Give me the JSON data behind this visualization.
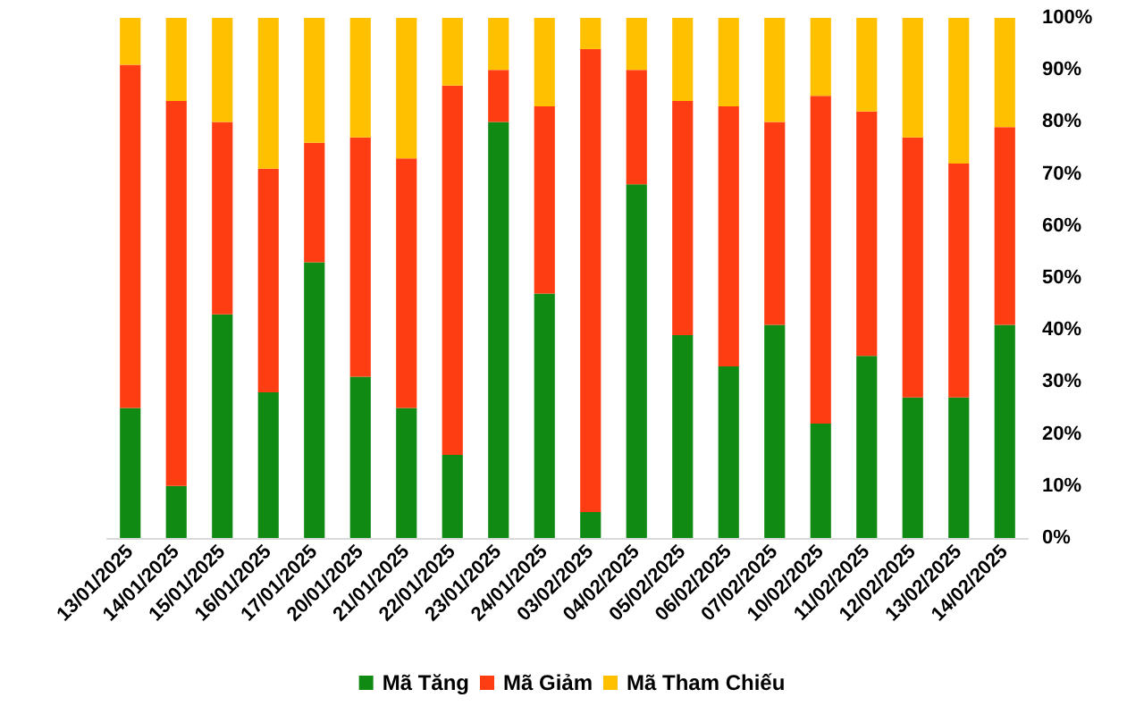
{
  "chart_data": {
    "type": "bar",
    "stacked": true,
    "categories": [
      "13/01/2025",
      "14/01/2025",
      "15/01/2025",
      "16/01/2025",
      "17/01/2025",
      "20/01/2025",
      "21/01/2025",
      "22/01/2025",
      "23/01/2025",
      "24/01/2025",
      "03/02/2025",
      "04/02/2025",
      "05/02/2025",
      "06/02/2025",
      "07/02/2025",
      "10/02/2025",
      "11/02/2025",
      "12/02/2025",
      "13/02/2025",
      "14/02/2025"
    ],
    "series": [
      {
        "name": "Mã Tăng",
        "color": "#118a14",
        "values": [
          25,
          10,
          43,
          28,
          53,
          31,
          25,
          16,
          80,
          47,
          5,
          68,
          39,
          33,
          41,
          22,
          35,
          27,
          27,
          41
        ]
      },
      {
        "name": "Mã Giảm",
        "color": "#ff3d12",
        "values": [
          66,
          74,
          37,
          43,
          23,
          46,
          48,
          71,
          10,
          36,
          89,
          22,
          45,
          50,
          39,
          63,
          47,
          50,
          45,
          38
        ]
      },
      {
        "name": "Mã Tham Chiếu",
        "color": "#ffc000",
        "values": [
          9,
          16,
          20,
          29,
          24,
          23,
          27,
          13,
          10,
          17,
          6,
          10,
          16,
          17,
          20,
          15,
          18,
          23,
          28,
          21
        ]
      }
    ],
    "ylim": [
      0,
      100
    ],
    "yticks": [
      {
        "value": 0,
        "label": "0%"
      },
      {
        "value": 10,
        "label": "10%"
      },
      {
        "value": 20,
        "label": "20%"
      },
      {
        "value": 30,
        "label": "30%"
      },
      {
        "value": 40,
        "label": "40%"
      },
      {
        "value": 50,
        "label": "50%"
      },
      {
        "value": 60,
        "label": "60%"
      },
      {
        "value": 70,
        "label": "70%"
      },
      {
        "value": 80,
        "label": "80%"
      },
      {
        "value": 90,
        "label": "90%"
      },
      {
        "value": 100,
        "label": "100%"
      }
    ],
    "grid": false,
    "legend": "bottom"
  }
}
